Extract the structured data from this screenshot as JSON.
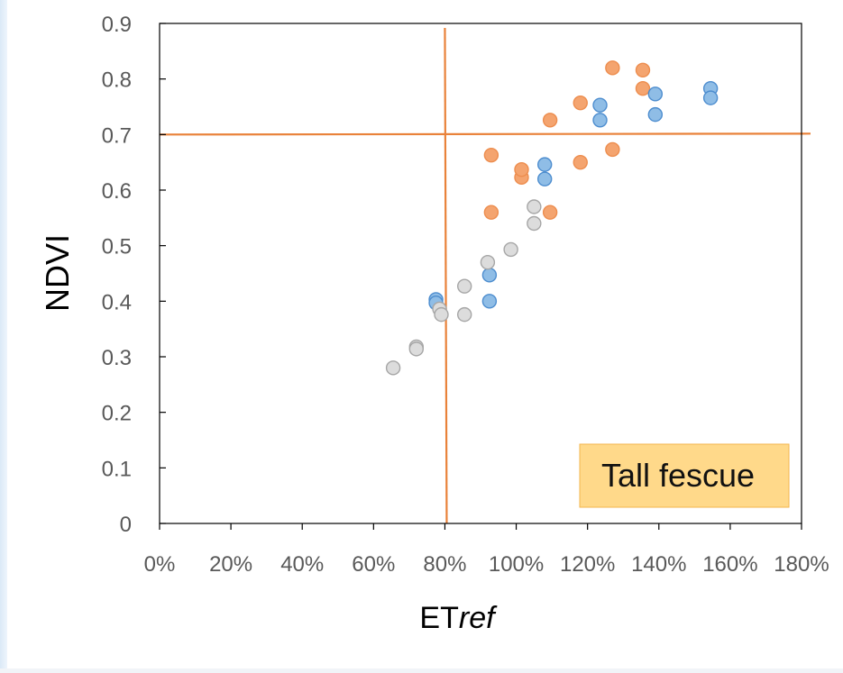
{
  "chart_data": {
    "type": "scatter",
    "title": "",
    "xlabel_plain": "ET",
    "xlabel_italic": "ref",
    "ylabel": "NDVI",
    "xlim": [
      0,
      1.8
    ],
    "ylim": [
      0,
      0.9
    ],
    "x_ticks": [
      "0%",
      "20%",
      "40%",
      "60%",
      "80%",
      "100%",
      "120%",
      "140%",
      "160%",
      "180%"
    ],
    "x_tick_values": [
      0,
      0.2,
      0.4,
      0.6,
      0.8,
      1.0,
      1.2,
      1.4,
      1.6,
      1.8
    ],
    "y_ticks": [
      "0",
      "0.1",
      "0.2",
      "0.3",
      "0.4",
      "0.5",
      "0.6",
      "0.7",
      "0.8",
      "0.9"
    ],
    "y_tick_values": [
      0,
      0.1,
      0.2,
      0.3,
      0.4,
      0.5,
      0.6,
      0.7,
      0.8,
      0.9
    ],
    "grid": false,
    "legend": "none",
    "annotation": {
      "text": "Tall fescue",
      "placement": "bottom-right",
      "fill_color": "#ffd98a",
      "border_color": "#f3b64e"
    },
    "reference_lines": {
      "color": "#e9823a",
      "vertical_x": 0.8,
      "horizontal_y": 0.7
    },
    "series": [
      {
        "color": "#ed8d4e",
        "fill": "#f4a46f",
        "points": [
          [
            0.93,
            0.663
          ],
          [
            0.93,
            0.56
          ],
          [
            1.015,
            0.623
          ],
          [
            1.015,
            0.637
          ],
          [
            1.095,
            0.726
          ],
          [
            1.095,
            0.56
          ],
          [
            1.18,
            0.757
          ],
          [
            1.18,
            0.65
          ],
          [
            1.27,
            0.82
          ],
          [
            1.27,
            0.673
          ],
          [
            1.355,
            0.816
          ],
          [
            1.355,
            0.783
          ]
        ]
      },
      {
        "color": "#4d8dcf",
        "fill": "#8fbde6",
        "points": [
          [
            0.775,
            0.403
          ],
          [
            0.775,
            0.397
          ],
          [
            0.925,
            0.447
          ],
          [
            0.925,
            0.4
          ],
          [
            1.08,
            0.646
          ],
          [
            1.08,
            0.62
          ],
          [
            1.235,
            0.753
          ],
          [
            1.235,
            0.726
          ],
          [
            1.39,
            0.773
          ],
          [
            1.39,
            0.736
          ],
          [
            1.545,
            0.783
          ],
          [
            1.545,
            0.766
          ]
        ]
      },
      {
        "color": "#a6a6a6",
        "fill": "#dcdcdc",
        "points": [
          [
            0.655,
            0.28
          ],
          [
            0.72,
            0.318
          ],
          [
            0.72,
            0.314
          ],
          [
            0.785,
            0.386
          ],
          [
            0.79,
            0.376
          ],
          [
            0.855,
            0.427
          ],
          [
            0.855,
            0.376
          ],
          [
            0.92,
            0.47
          ],
          [
            0.985,
            0.493
          ],
          [
            1.05,
            0.57
          ],
          [
            1.05,
            0.54
          ]
        ]
      }
    ]
  }
}
